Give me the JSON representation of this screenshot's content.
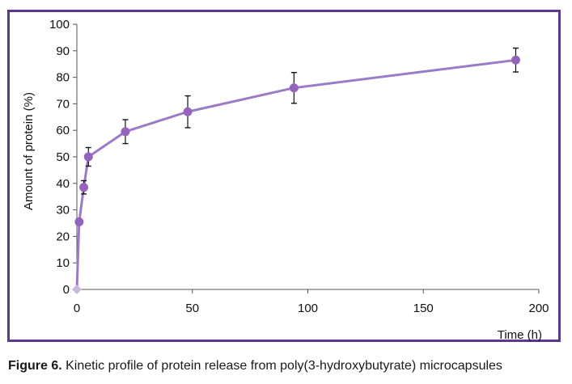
{
  "chart_data": {
    "type": "line",
    "title": "",
    "xlabel": "Time (h)",
    "ylabel": "Amount of protein (%)",
    "xlim": [
      0,
      200
    ],
    "ylim": [
      0,
      100
    ],
    "x_ticks": [
      0,
      50,
      100,
      150,
      200
    ],
    "y_ticks": [
      0,
      10,
      20,
      30,
      40,
      50,
      60,
      70,
      80,
      90,
      100
    ],
    "grid": false,
    "legend": "none",
    "series": [
      {
        "line_color": "#9a7bc4",
        "marker_color": "#9464bd",
        "points": [
          {
            "x": 0,
            "y": 0,
            "err": 0
          },
          {
            "x": 1,
            "y": 25.5,
            "err": 0
          },
          {
            "x": 3,
            "y": 38.5,
            "err": 2.5
          },
          {
            "x": 5,
            "y": 50,
            "err": 3.5
          },
          {
            "x": 21,
            "y": 59.5,
            "err": 4.5
          },
          {
            "x": 48,
            "y": 67,
            "err": 6
          },
          {
            "x": 94,
            "y": 76,
            "err": 5.8
          },
          {
            "x": 190,
            "y": 86.5,
            "err": 4.5
          }
        ]
      }
    ]
  },
  "caption": {
    "label": "Figure 6.",
    "text": " Kinetic profile of protein release from poly(3-hydroxybutyrate) microcapsules"
  }
}
